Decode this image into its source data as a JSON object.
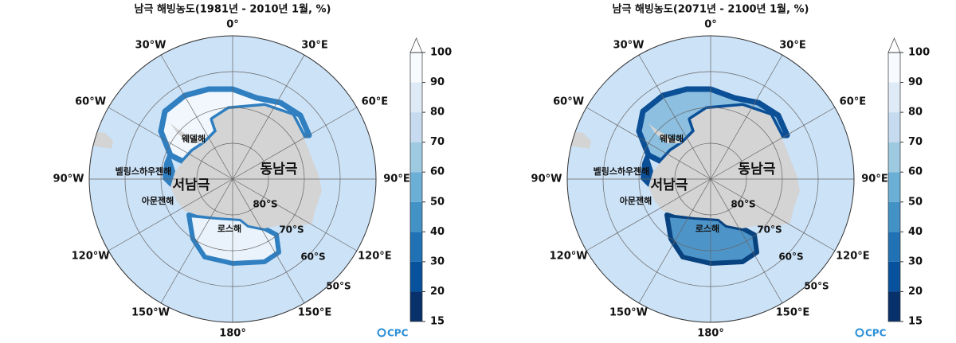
{
  "maps": [
    {
      "title": "남극 해빙농도(1981년 - 2010년 1월, %)"
    },
    {
      "title": "남극 해빙농도(2071년 - 2100년 1월, %)"
    }
  ],
  "longitude_labels": [
    "0°",
    "30°E",
    "60°E",
    "90°E",
    "120°E",
    "150°E",
    "180°",
    "150°W",
    "120°W",
    "90°W",
    "60°W",
    "30°W"
  ],
  "latitude_labels": [
    "80°S",
    "70°S",
    "60°S",
    "50°S"
  ],
  "region_labels": {
    "weddell": "웨델해",
    "bellingshausen": "벨링스하우젠해",
    "west": "서남극",
    "east": "동남극",
    "amundsen": "아문젠해",
    "ross": "로스해"
  },
  "colorbar": {
    "ticks": [
      15,
      20,
      30,
      40,
      50,
      60,
      70,
      80,
      90,
      100
    ],
    "colors": [
      "#08306b",
      "#08519c",
      "#2171b5",
      "#4292c6",
      "#6baed6",
      "#9ecae1",
      "#c6dbef",
      "#deebf7",
      "#f7fbff"
    ],
    "over_color": "#ffffff"
  },
  "logo": "CPC"
}
